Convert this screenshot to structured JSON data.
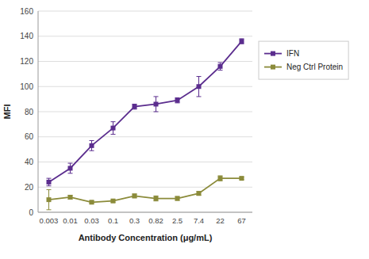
{
  "chart_data": {
    "type": "line",
    "x_label": "Antibody Concentration (μg/mL)",
    "y_label": "MFI",
    "categories": [
      "0.003",
      "0.01",
      "0.03",
      "0.1",
      "0.3",
      "0.82",
      "2.5",
      "7.4",
      "22",
      "67"
    ],
    "series": [
      {
        "name": "IFN",
        "color": "#5b2d8e",
        "marker": "square",
        "values": [
          24,
          35,
          53,
          67,
          84,
          86,
          89,
          100,
          116,
          136
        ],
        "errors": [
          3,
          4,
          4,
          5,
          2,
          6,
          2,
          8,
          3,
          2
        ]
      },
      {
        "name": "Neg Ctrl Protein",
        "color": "#8b8b3a",
        "marker": "square",
        "values": [
          10,
          12,
          8,
          9,
          13,
          11,
          11,
          15,
          27,
          27
        ],
        "errors": [
          8,
          1.5,
          1,
          1,
          1.5,
          2,
          1.5,
          1.5,
          2,
          1
        ]
      }
    ],
    "ylim": [
      0,
      160
    ],
    "yticks": [
      0,
      20,
      40,
      60,
      80,
      100,
      120,
      140,
      160
    ],
    "grid": true,
    "legend": "right"
  }
}
